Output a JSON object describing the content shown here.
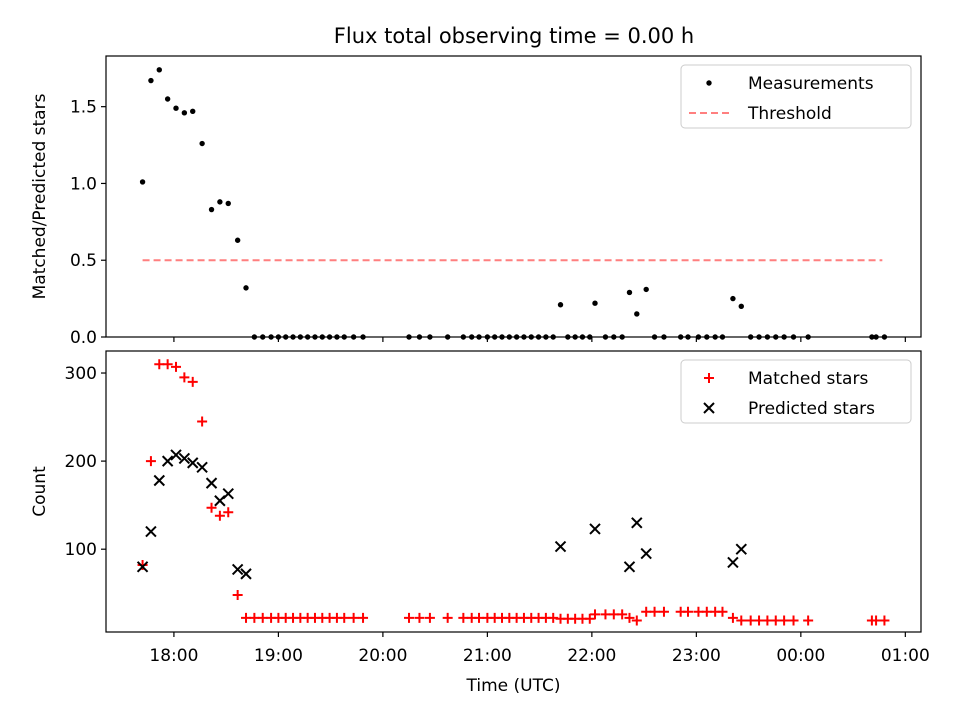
{
  "title": "Flux total observing time = 0.00 h",
  "colors": {
    "measurement": "#000000",
    "threshold": "#ff7f7f",
    "matched": "#ff0000",
    "predicted": "#000000",
    "axis": "#000000"
  },
  "chart_data": [
    {
      "type": "scatter",
      "ylabel": "Matched/Predicted stars",
      "xlim": [
        17.35,
        25.15
      ],
      "ylim": [
        0,
        1.83
      ],
      "yticks": [
        0.0,
        0.5,
        1.0,
        1.5
      ],
      "ytick_labels": [
        "0.0",
        "0.5",
        "1.0",
        "1.5"
      ],
      "legend": [
        {
          "label": "Measurements",
          "marker": "dot"
        },
        {
          "label": "Threshold",
          "marker": "dash"
        }
      ],
      "threshold": {
        "value": 0.5,
        "x_start": 17.7,
        "x_end": 24.78
      },
      "series": [
        {
          "name": "Measurements",
          "x": [
            17.7,
            17.78,
            17.86,
            17.94,
            18.02,
            18.1,
            18.18,
            18.27,
            18.36,
            18.44,
            18.52,
            18.61,
            18.69,
            18.77,
            18.85,
            18.93,
            19.0,
            19.07,
            19.14,
            19.21,
            19.28,
            19.35,
            19.42,
            19.49,
            19.56,
            19.63,
            19.72,
            19.81,
            20.25,
            20.35,
            20.45,
            20.62,
            20.77,
            20.85,
            20.92,
            21.0,
            21.07,
            21.14,
            21.21,
            21.28,
            21.35,
            21.42,
            21.49,
            21.56,
            21.63,
            21.7,
            21.77,
            21.84,
            21.91,
            21.98,
            22.03,
            22.13,
            22.21,
            22.29,
            22.36,
            22.43,
            22.52,
            22.6,
            22.69,
            22.85,
            22.92,
            23.02,
            23.1,
            23.18,
            23.25,
            23.35,
            23.43,
            23.52,
            23.6,
            23.68,
            23.76,
            23.84,
            23.93,
            24.07,
            24.68,
            24.72,
            24.8
          ],
          "y": [
            1.01,
            1.67,
            1.74,
            1.55,
            1.49,
            1.46,
            1.47,
            1.26,
            0.83,
            0.88,
            0.87,
            0.63,
            0.32,
            0.0,
            0.0,
            0.0,
            0.0,
            0.0,
            0.0,
            0.0,
            0.0,
            0.0,
            0.0,
            0.0,
            0.0,
            0.0,
            0.0,
            0.0,
            0.0,
            0.0,
            0.0,
            0.0,
            0.0,
            0.0,
            0.0,
            0.0,
            0.0,
            0.0,
            0.0,
            0.0,
            0.0,
            0.0,
            0.0,
            0.0,
            0.0,
            0.21,
            0.0,
            0.0,
            0.0,
            0.0,
            0.22,
            0.0,
            0.0,
            0.0,
            0.29,
            0.15,
            0.31,
            0.0,
            0.0,
            0.0,
            0.0,
            0.0,
            0.0,
            0.0,
            0.0,
            0.25,
            0.2,
            0.0,
            0.0,
            0.0,
            0.0,
            0.0,
            0.0,
            0.0,
            0.0,
            0.0,
            0.0
          ]
        }
      ]
    },
    {
      "type": "scatter",
      "ylabel": "Count",
      "xlabel": "Time (UTC)",
      "xlim": [
        17.35,
        25.15
      ],
      "ylim": [
        6,
        325
      ],
      "yticks": [
        100,
        200,
        300
      ],
      "ytick_labels": [
        "100",
        "200",
        "300"
      ],
      "xticks": [
        18,
        19,
        20,
        21,
        22,
        23,
        24,
        25
      ],
      "xtick_labels": [
        "18:00",
        "19:00",
        "20:00",
        "21:00",
        "22:00",
        "23:00",
        "00:00",
        "01:00"
      ],
      "legend": [
        {
          "label": "Matched stars",
          "marker": "plus"
        },
        {
          "label": "Predicted stars",
          "marker": "x"
        }
      ],
      "series": [
        {
          "name": "Matched stars",
          "x": [
            17.7,
            17.78,
            17.86,
            17.94,
            18.02,
            18.1,
            18.18,
            18.27,
            18.36,
            18.44,
            18.52,
            18.61,
            18.69,
            18.77,
            18.85,
            18.93,
            19.0,
            19.07,
            19.14,
            19.21,
            19.28,
            19.35,
            19.42,
            19.49,
            19.56,
            19.63,
            19.72,
            19.81,
            20.25,
            20.35,
            20.45,
            20.62,
            20.77,
            20.85,
            20.92,
            21.0,
            21.07,
            21.14,
            21.21,
            21.28,
            21.35,
            21.42,
            21.49,
            21.56,
            21.63,
            21.7,
            21.77,
            21.84,
            21.91,
            21.98,
            22.03,
            22.13,
            22.21,
            22.29,
            22.36,
            22.43,
            22.52,
            22.6,
            22.69,
            22.85,
            22.92,
            23.02,
            23.1,
            23.18,
            23.25,
            23.35,
            23.43,
            23.52,
            23.6,
            23.68,
            23.76,
            23.84,
            23.93,
            24.07,
            24.68,
            24.72,
            24.8
          ],
          "y": [
            82,
            200,
            310,
            310,
            307,
            295,
            290,
            245,
            147,
            138,
            142,
            48,
            22,
            22,
            22,
            22,
            22,
            22,
            22,
            22,
            22,
            22,
            22,
            22,
            22,
            22,
            22,
            22,
            22,
            22,
            22,
            22,
            22,
            22,
            22,
            22,
            22,
            22,
            22,
            22,
            22,
            22,
            22,
            22,
            22,
            21,
            21,
            21,
            21,
            21,
            26,
            26,
            26,
            26,
            22,
            19,
            29,
            29,
            29,
            29,
            29,
            29,
            29,
            29,
            29,
            22,
            19,
            19,
            19,
            19,
            19,
            19,
            19,
            19,
            19,
            19,
            19
          ]
        },
        {
          "name": "Predicted stars",
          "x": [
            17.7,
            17.78,
            17.86,
            17.94,
            18.02,
            18.1,
            18.18,
            18.27,
            18.36,
            18.44,
            18.52,
            18.61,
            18.69,
            21.7,
            22.03,
            22.36,
            22.43,
            22.52,
            23.35,
            23.43
          ],
          "y": [
            80,
            120,
            178,
            200,
            207,
            203,
            198,
            193,
            175,
            155,
            163,
            77,
            72,
            103,
            123,
            80,
            130,
            95,
            85,
            100
          ]
        }
      ]
    }
  ]
}
